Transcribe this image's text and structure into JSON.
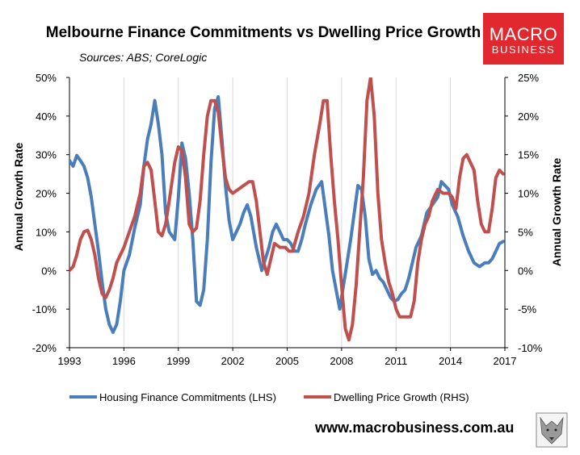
{
  "brand": {
    "line1": "MACRO",
    "line2": "BUSINESS",
    "color": "#e0282e"
  },
  "website": "www.macrobusiness.com.au",
  "chart_data": {
    "type": "line",
    "title": "Melbourne Finance Commitments vs Dwelling Price Growth",
    "subtitle": "Sources: ABS; CoreLogic",
    "ylabel_left": "Annual Growth Rate",
    "ylabel_right": "Annual Growth Rate",
    "xlim": [
      1993,
      2017
    ],
    "x_ticks": [
      "1993",
      "1996",
      "1999",
      "2002",
      "2005",
      "2008",
      "2011",
      "2014",
      "2017"
    ],
    "ylim_left": [
      -20,
      50
    ],
    "ylim_right": [
      -10,
      25
    ],
    "y_ticks_left": [
      "-20%",
      "-10%",
      "0%",
      "10%",
      "20%",
      "30%",
      "40%",
      "50%"
    ],
    "y_ticks_right": [
      "-10%",
      "-5%",
      "0%",
      "5%",
      "10%",
      "15%",
      "20%",
      "25%"
    ],
    "grid": "vertical",
    "legend_position": "bottom",
    "series": [
      {
        "name": "Housing Finance Commitments (LHS)",
        "axis": "left",
        "color": "#4a7ebb",
        "x": [
          1993.0,
          1993.2,
          1993.4,
          1993.6,
          1993.8,
          1994.0,
          1994.2,
          1994.4,
          1994.6,
          1994.8,
          1995.0,
          1995.2,
          1995.4,
          1995.6,
          1995.8,
          1996.0,
          1996.3,
          1996.6,
          1996.9,
          1997.1,
          1997.3,
          1997.5,
          1997.7,
          1997.9,
          1998.1,
          1998.3,
          1998.5,
          1998.8,
          1999.0,
          1999.2,
          1999.4,
          1999.6,
          1999.8,
          2000.0,
          2000.2,
          2000.4,
          2000.6,
          2000.8,
          2001.0,
          2001.2,
          2001.4,
          2001.6,
          2001.8,
          2002.0,
          2002.2,
          2002.4,
          2002.6,
          2002.8,
          2003.0,
          2003.3,
          2003.6,
          2003.8,
          2004.0,
          2004.2,
          2004.4,
          2004.6,
          2004.8,
          2005.0,
          2005.2,
          2005.4,
          2005.6,
          2005.8,
          2006.0,
          2006.3,
          2006.6,
          2006.9,
          2007.1,
          2007.3,
          2007.5,
          2007.7,
          2007.9,
          2008.1,
          2008.3,
          2008.5,
          2008.7,
          2008.9,
          2009.1,
          2009.3,
          2009.5,
          2009.7,
          2009.9,
          2010.1,
          2010.3,
          2010.5,
          2010.7,
          2010.9,
          2011.1,
          2011.3,
          2011.5,
          2011.7,
          2011.9,
          2012.1,
          2012.4,
          2012.7,
          2013.0,
          2013.3,
          2013.5,
          2013.7,
          2013.9,
          2014.1,
          2014.4,
          2014.7,
          2015.0,
          2015.3,
          2015.6,
          2015.9,
          2016.1,
          2016.3,
          2016.5,
          2016.7,
          2016.9
        ],
        "values": [
          28.5,
          27,
          29.8,
          28.5,
          27,
          24,
          19,
          12,
          5,
          -3,
          -10,
          -14,
          -16,
          -14,
          -8,
          0,
          4,
          11,
          17,
          27,
          34,
          38,
          44,
          38,
          30,
          15,
          10,
          8,
          19,
          33,
          29,
          20,
          8,
          -8,
          -9,
          -5,
          8,
          28,
          42,
          45,
          34,
          22,
          13,
          8,
          10,
          12,
          15,
          17,
          14,
          6,
          0,
          3,
          6,
          10,
          12,
          10,
          8,
          8,
          7,
          5,
          5,
          8,
          12,
          17,
          21,
          23,
          16,
          9,
          0,
          -5,
          -10,
          -4,
          2,
          8,
          15,
          22,
          21,
          14,
          3,
          -1,
          0,
          -2,
          -3,
          -5,
          -7,
          -8,
          -7.5,
          -6,
          -5,
          -2,
          2,
          6,
          9,
          15,
          17,
          19,
          23,
          22,
          21,
          17,
          14,
          9,
          5,
          2,
          1,
          2,
          2,
          3,
          5,
          7,
          7.5
        ]
      },
      {
        "name": "Dwelling Price Growth (RHS)",
        "axis": "right",
        "color": "#c0504d",
        "x": [
          1993.0,
          1993.2,
          1993.4,
          1993.6,
          1993.8,
          1994.0,
          1994.2,
          1994.4,
          1994.6,
          1994.8,
          1995.0,
          1995.2,
          1995.4,
          1995.6,
          1995.8,
          1996.0,
          1996.3,
          1996.6,
          1996.9,
          1997.1,
          1997.3,
          1997.5,
          1997.7,
          1997.9,
          1998.1,
          1998.3,
          1998.5,
          1998.8,
          1999.0,
          1999.2,
          1999.4,
          1999.6,
          1999.8,
          2000.0,
          2000.2,
          2000.4,
          2000.6,
          2000.8,
          2001.0,
          2001.2,
          2001.4,
          2001.6,
          2001.8,
          2002.0,
          2002.3,
          2002.6,
          2002.9,
          2003.1,
          2003.3,
          2003.5,
          2003.7,
          2003.9,
          2004.1,
          2004.3,
          2004.6,
          2004.9,
          2005.1,
          2005.3,
          2005.6,
          2005.9,
          2006.2,
          2006.5,
          2006.8,
          2007.0,
          2007.2,
          2007.4,
          2007.6,
          2007.8,
          2008.0,
          2008.2,
          2008.4,
          2008.6,
          2008.8,
          2009.0,
          2009.2,
          2009.4,
          2009.6,
          2009.8,
          2010.0,
          2010.2,
          2010.4,
          2010.6,
          2010.8,
          2011.0,
          2011.2,
          2011.4,
          2011.6,
          2011.8,
          2012.0,
          2012.2,
          2012.4,
          2012.6,
          2012.8,
          2013.0,
          2013.3,
          2013.6,
          2013.9,
          2014.1,
          2014.3,
          2014.5,
          2014.7,
          2014.9,
          2015.1,
          2015.3,
          2015.5,
          2015.7,
          2015.9,
          2016.1,
          2016.3,
          2016.5,
          2016.7,
          2016.9
        ],
        "values": [
          0,
          0.5,
          2,
          4,
          5,
          5.2,
          4,
          2,
          -1,
          -3,
          -3.5,
          -2.5,
          -1,
          1,
          2,
          3,
          5,
          7,
          10,
          13.5,
          14,
          13,
          9,
          5,
          4.5,
          6,
          9,
          14,
          16,
          15.5,
          12,
          6,
          5,
          5.5,
          9,
          15,
          20,
          22,
          22,
          20.5,
          16,
          12,
          10.5,
          10,
          10.5,
          11,
          11.5,
          11.5,
          9,
          5,
          1,
          -0.5,
          1.5,
          3.5,
          3,
          3,
          2.5,
          2.5,
          5,
          7,
          10,
          15,
          19,
          22,
          22,
          15,
          9,
          4,
          -2,
          -7.5,
          -9,
          -7,
          -2,
          5,
          12,
          22,
          25,
          20,
          10,
          4,
          1,
          -1.5,
          -3,
          -5,
          -6,
          -6,
          -6,
          -6,
          -4,
          1,
          4,
          6,
          7,
          9,
          10.5,
          10,
          10,
          9.5,
          8,
          12,
          14.5,
          15,
          14,
          13,
          9,
          6,
          5,
          5,
          8,
          12,
          13,
          12.5
        ]
      }
    ]
  }
}
